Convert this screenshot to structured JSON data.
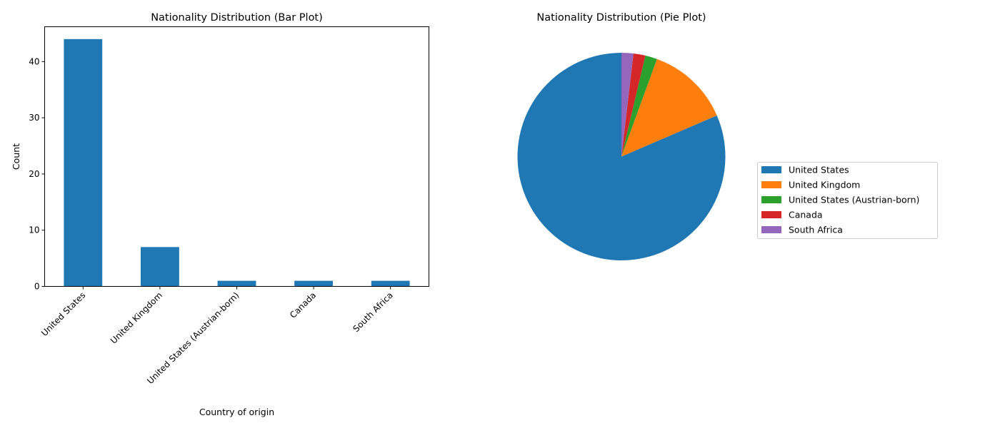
{
  "chart_data": [
    {
      "type": "bar",
      "title": "Nationality Distribution (Bar Plot)",
      "xlabel": "Country of origin",
      "ylabel": "Count",
      "categories": [
        "United States",
        "United Kingdom",
        "United States (Austrian-born)",
        "Canada",
        "South Africa"
      ],
      "values": [
        44,
        7,
        1,
        1,
        1
      ],
      "ylim": [
        0,
        46.2
      ],
      "yticks": [
        0,
        10,
        20,
        30,
        40
      ],
      "color": "#1f77b4",
      "grid": false
    },
    {
      "type": "pie",
      "title": "Nationality Distribution (Pie Plot)",
      "labels": [
        "United States",
        "United Kingdom",
        "United States (Austrian-born)",
        "Canada",
        "South Africa"
      ],
      "values": [
        44,
        7,
        1,
        1,
        1
      ],
      "colors": [
        "#1f77b4",
        "#ff7f0e",
        "#2ca02c",
        "#d62728",
        "#9467bd"
      ],
      "start_angle_deg": 90,
      "legend_location": "center-right"
    }
  ]
}
